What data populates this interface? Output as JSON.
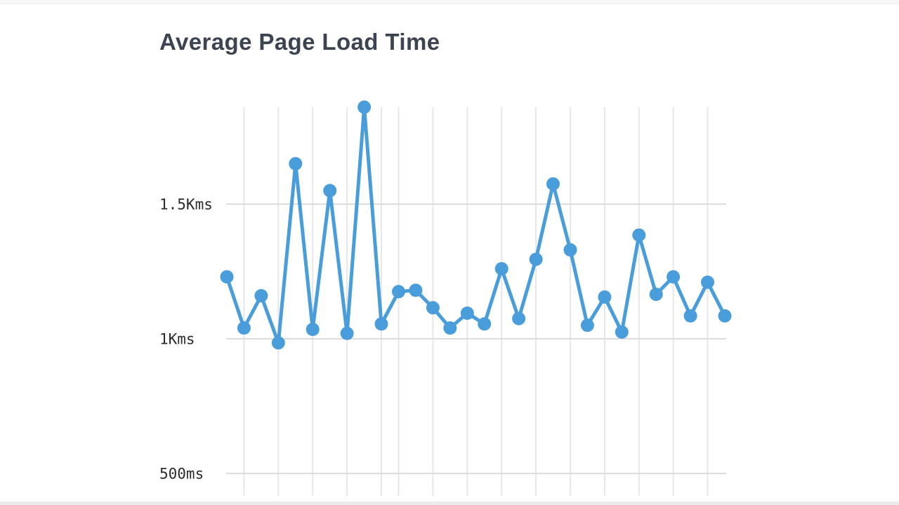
{
  "title": "Average Page Load Time",
  "colors": {
    "line": "#4a9ddb",
    "marker": "#4a9ddb",
    "grid_vertical": "#e7e7ea",
    "grid_horizontal": "#dcdcdf",
    "title_text": "#3d4451",
    "tick_label": "#2b2b2e",
    "background": "#ffffff"
  },
  "chart_data": {
    "type": "line",
    "title": "Average Page Load Time",
    "unit": "ms",
    "xlabel": "",
    "ylabel": "",
    "ylim": [
      420,
      1860
    ],
    "legend": "none",
    "grid": "on",
    "y_ticks": [
      {
        "label": "1.5Kms",
        "value": 1500
      },
      {
        "label": "1Kms",
        "value": 1000
      },
      {
        "label": "500ms",
        "value": 500
      }
    ],
    "point_count": 30,
    "values": [
      1230,
      1040,
      1160,
      985,
      1650,
      1035,
      1550,
      1020,
      1860,
      1055,
      1175,
      1180,
      1115,
      1040,
      1095,
      1055,
      1260,
      1075,
      1295,
      1575,
      1330,
      1050,
      1155,
      1025,
      1385,
      1165,
      1230,
      1085,
      1210,
      1085
    ],
    "vertical_grid_point_indices": [
      1,
      3,
      5,
      7,
      9,
      10,
      12,
      14,
      16,
      18,
      20,
      22,
      24,
      26,
      28
    ]
  }
}
